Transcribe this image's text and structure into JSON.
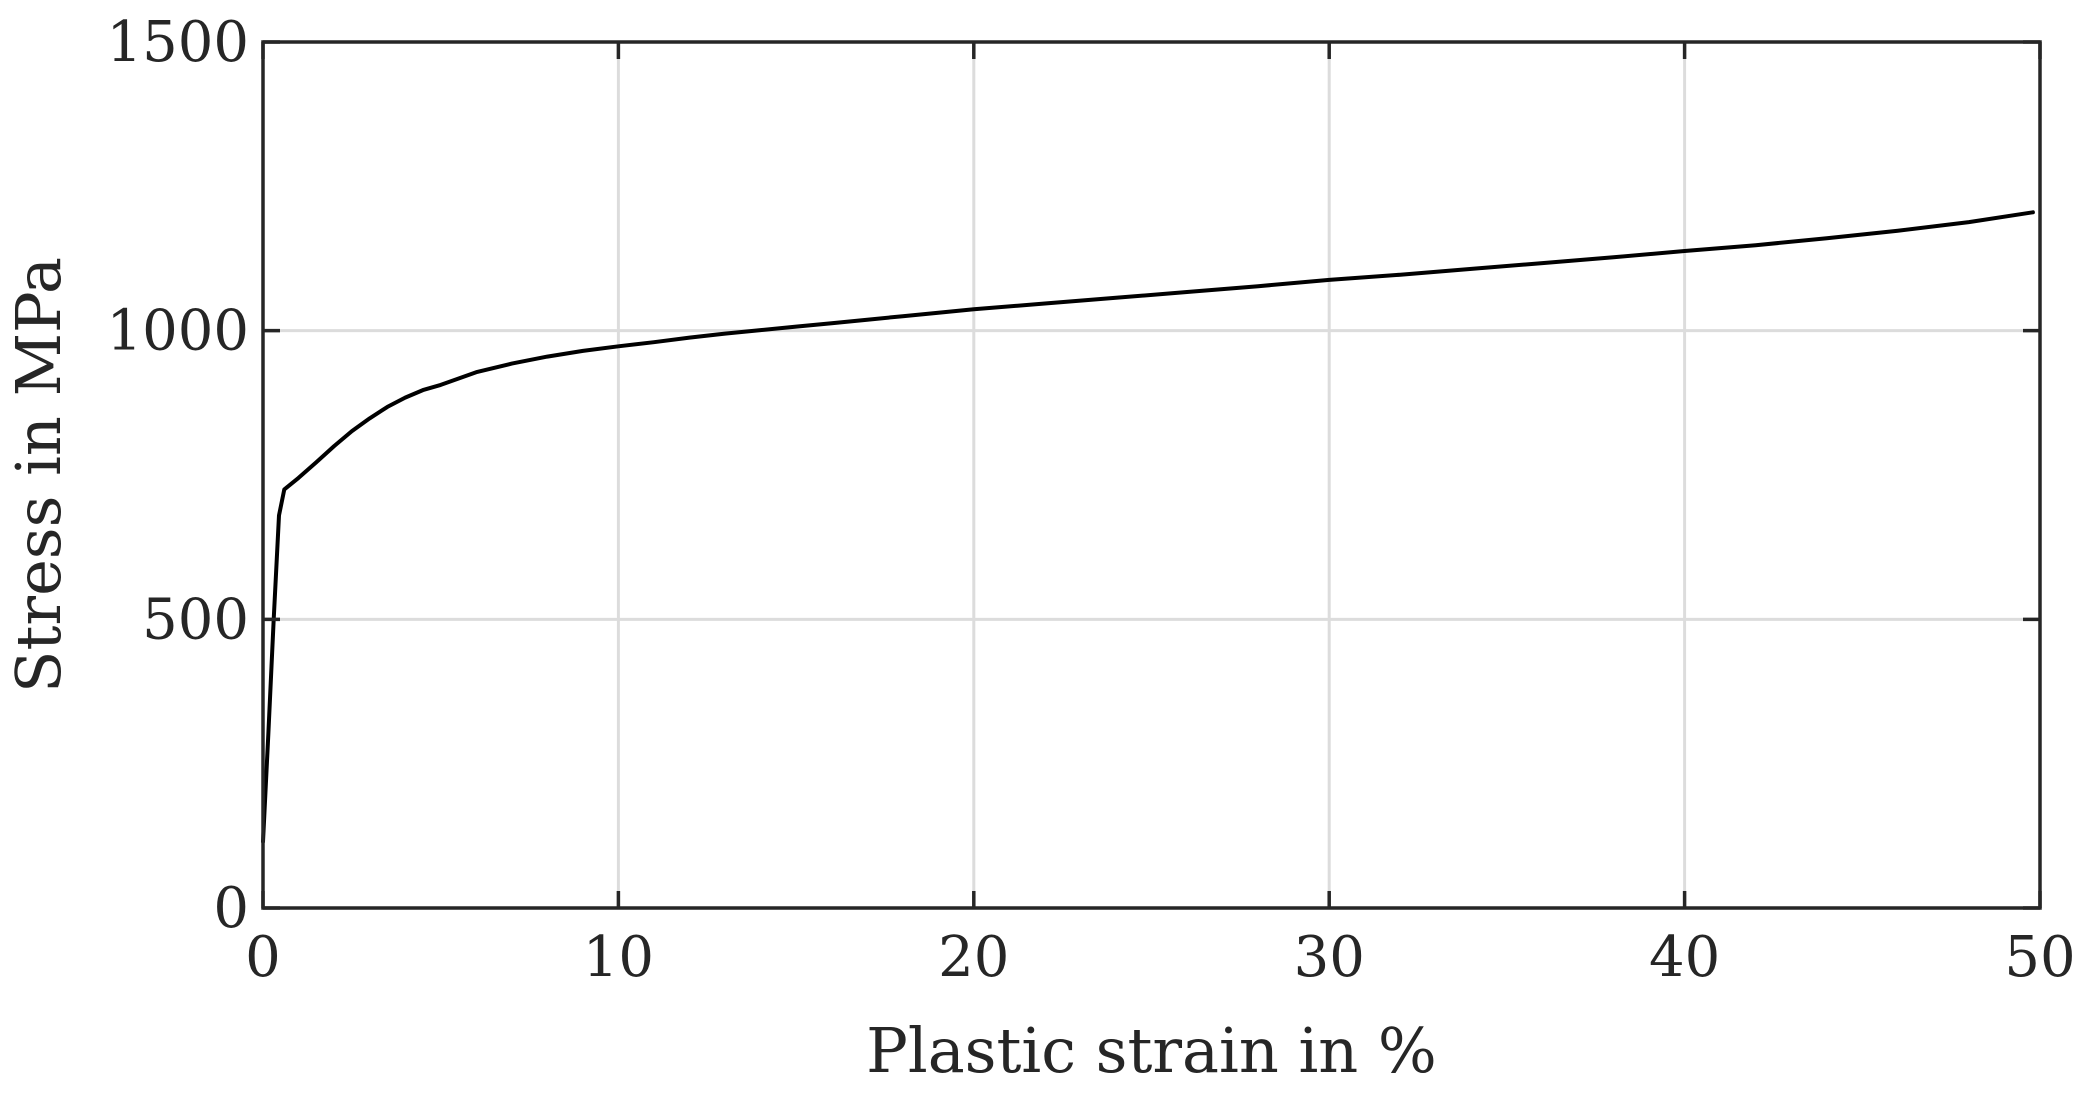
{
  "chart_data": {
    "type": "line",
    "title": "",
    "xlabel": "Plastic strain in %",
    "ylabel": "Stress in MPa",
    "xlim": [
      0,
      50
    ],
    "ylim": [
      0,
      1500
    ],
    "xticks": [
      0,
      10,
      20,
      30,
      40,
      50
    ],
    "yticks": [
      0,
      500,
      1000,
      1500
    ],
    "xtick_labels": [
      "0",
      "10",
      "20",
      "30",
      "40",
      "50"
    ],
    "ytick_labels": [
      "0",
      "500",
      "1000",
      "1500"
    ],
    "grid": true,
    "legend": "none",
    "series": [
      {
        "color": "#000000",
        "x": [
          0,
          0.15,
          0.3,
          0.45,
          0.6,
          0.8,
          1.0,
          1.5,
          2.0,
          2.5,
          3.0,
          3.5,
          4.0,
          4.5,
          5.0,
          6.0,
          7.0,
          8.0,
          9.0,
          10.0,
          11.0,
          12.0,
          13.0,
          14.0,
          15.0,
          16.0,
          17.0,
          18.0,
          19.0,
          20.0,
          22.0,
          24.0,
          26.0,
          28.0,
          30.0,
          32.0,
          34.0,
          36.0,
          38.0,
          40.0,
          42.0,
          44.0,
          46.0,
          48.0,
          49.8
        ],
        "y": [
          115,
          300,
          500,
          680,
          725,
          735,
          745,
          772,
          800,
          826,
          848,
          868,
          884,
          897,
          906,
          928,
          943,
          955,
          965,
          973,
          980,
          988,
          995,
          1001,
          1007,
          1013,
          1019,
          1025,
          1031,
          1037,
          1047,
          1057,
          1067,
          1077,
          1088,
          1097,
          1107,
          1117,
          1127,
          1138,
          1148,
          1160,
          1173,
          1188,
          1205
        ]
      }
    ]
  }
}
